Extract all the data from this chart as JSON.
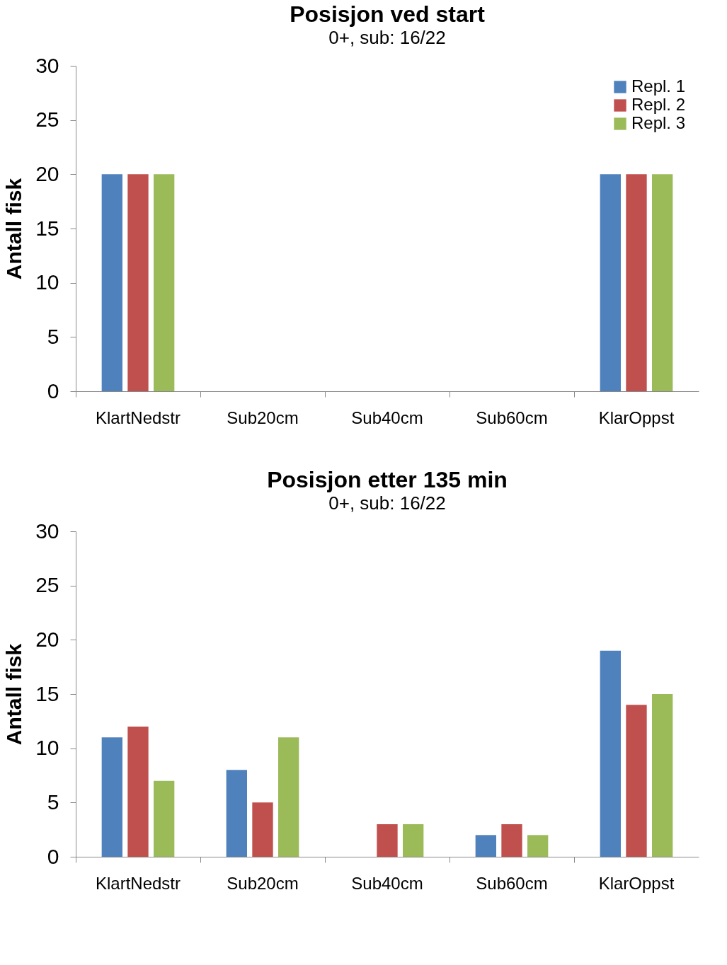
{
  "chart_data": [
    {
      "type": "bar",
      "title": "Posisjon ved start",
      "subtitle": "0+,  sub: 16/22",
      "ylabel": "Antall fisk",
      "categories": [
        "KlartNedstr",
        "Sub20cm",
        "Sub40cm",
        "Sub60cm",
        "KlarOppst"
      ],
      "ylim": [
        0,
        30
      ],
      "yticks": [
        0,
        5,
        10,
        15,
        20,
        25,
        30
      ],
      "grid": false,
      "legend": "top right",
      "series": [
        {
          "name": "Repl. 1",
          "color": "#4f81bd",
          "values": [
            20,
            0,
            0,
            0,
            20
          ]
        },
        {
          "name": "Repl. 2",
          "color": "#c0504d",
          "values": [
            20,
            0,
            0,
            0,
            20
          ]
        },
        {
          "name": "Repl. 3",
          "color": "#9bbb59",
          "values": [
            20,
            0,
            0,
            0,
            20
          ]
        }
      ]
    },
    {
      "type": "bar",
      "title": "Posisjon etter 135 min",
      "subtitle": "0+,  sub: 16/22",
      "ylabel": "Antall fisk",
      "categories": [
        "KlartNedstr",
        "Sub20cm",
        "Sub40cm",
        "Sub60cm",
        "KlarOppst"
      ],
      "ylim": [
        0,
        30
      ],
      "yticks": [
        0,
        5,
        10,
        15,
        20,
        25,
        30
      ],
      "grid": false,
      "legend": "top right",
      "series": [
        {
          "name": "Repl. 1",
          "color": "#4f81bd",
          "values": [
            11,
            8,
            0,
            2,
            19
          ]
        },
        {
          "name": "Repl. 2",
          "color": "#c0504d",
          "values": [
            12,
            5,
            3,
            3,
            14
          ]
        },
        {
          "name": "Repl. 3",
          "color": "#9bbb59",
          "values": [
            7,
            11,
            3,
            2,
            15
          ]
        }
      ]
    }
  ]
}
